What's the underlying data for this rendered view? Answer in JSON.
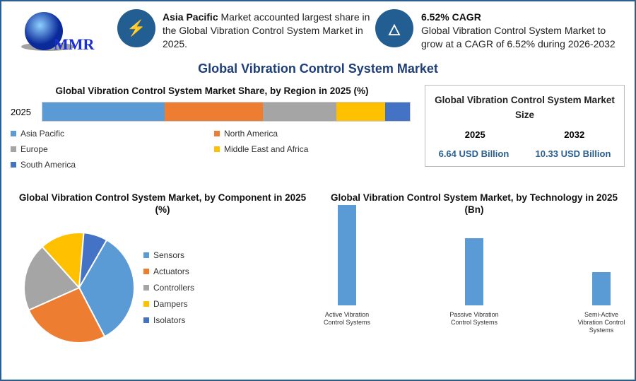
{
  "logo": {
    "text": "MMR"
  },
  "highlights": [
    {
      "icon": "lightning-icon",
      "bold": "Asia Pacific",
      "text": " Market accounted largest share in the Global Vibration Control System Market in 2025."
    },
    {
      "icon": "flame-icon",
      "bold": "6.52% CAGR",
      "text": "Global Vibration Control System Market to grow at a CAGR of 6.52% during 2026-2032"
    }
  ],
  "title": "Global Vibration Control System Market",
  "size_box": {
    "title": "Global Vibration Control System Market Size",
    "years": [
      "2025",
      "2032"
    ],
    "values": [
      "6.64 USD Billion",
      "10.33 USD Billion"
    ]
  },
  "colors": [
    "#5b9bd5",
    "#ed7d31",
    "#a5a5a5",
    "#ffc000",
    "#4472c4"
  ],
  "chart_data": [
    {
      "type": "bar",
      "orientation": "horizontal-stacked",
      "title": "Global Vibration Control System Market Share, by Region in 2025 (%)",
      "categories": [
        "2025"
      ],
      "series": [
        {
          "name": "Asia Pacific",
          "values": [
            33.3
          ]
        },
        {
          "name": "North America",
          "values": [
            26.6
          ]
        },
        {
          "name": "Europe",
          "values": [
            20.1
          ]
        },
        {
          "name": "Middle East and Africa",
          "values": [
            13.2
          ]
        },
        {
          "name": "South America",
          "values": [
            6.7
          ]
        }
      ],
      "legend": "bottom"
    },
    {
      "type": "pie",
      "title": "Global Vibration Control System Market, by Component in 2025 (%)",
      "labels": [
        "Sensors",
        "Actuators",
        "Controllers",
        "Dampers",
        "Isolators"
      ],
      "values": [
        34,
        26,
        20,
        13,
        7
      ],
      "legend": "right"
    },
    {
      "type": "bar",
      "title": "Global Vibration Control System Market, by Technology in 2025 (Bn)",
      "categories": [
        "Active Vibration Control Systems",
        "Passive Vibration Control Systems",
        "Semi-Active Vibration Control Systems"
      ],
      "values": [
        3,
        2,
        1
      ]
    }
  ]
}
